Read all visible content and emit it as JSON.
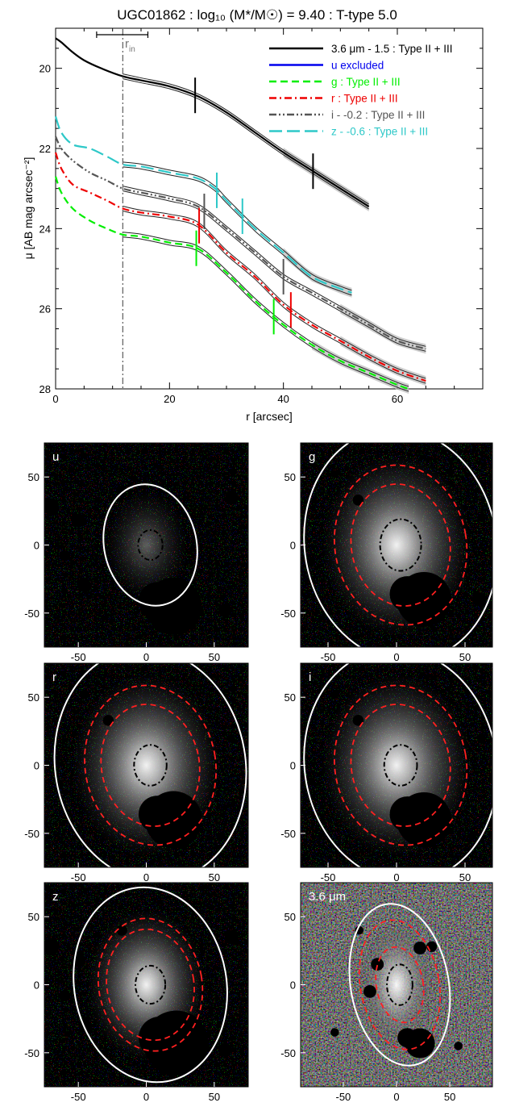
{
  "profile": {
    "title": "UGC01862 : log₁₀ (M*/M☉) = 9.40 : T-type 5.0",
    "xlabel": "r [arcsec]",
    "ylabel": "μ [AB mag arcsec⁻²]",
    "rin_label": "r",
    "rin_sub": "in",
    "x_ticks": [
      "0",
      "20",
      "40",
      "60"
    ],
    "y_ticks": [
      "20",
      "22",
      "24",
      "26",
      "28"
    ],
    "legend": [
      {
        "label": "3.6 μm - 1.5 : Type II + III",
        "color": "#000000",
        "label_color": "#000000"
      },
      {
        "label": "u excluded",
        "color": "#0000ee",
        "label_color": "#0000ee"
      },
      {
        "label": "g : Type II + III",
        "color": "#00ee00",
        "label_color": "#00ee00"
      },
      {
        "label": "r : Type II + III",
        "color": "#ee0000",
        "label_color": "#ee0000"
      },
      {
        "label": "i - -0.2 : Type II + III",
        "color": "#555555",
        "label_color": "#555555"
      },
      {
        "label": "z - -0.6 : Type II + III",
        "color": "#2ec8c8",
        "label_color": "#2ec8c8"
      }
    ]
  },
  "chart_data": {
    "type": "line",
    "title": "UGC01862 : log₁₀ (M*/M☉) = 9.40 : T-type 5.0",
    "xlabel": "r [arcsec]",
    "ylabel": "μ [AB mag arcsec⁻²]",
    "xlim": [
      0,
      75
    ],
    "ylim": [
      28,
      19
    ],
    "y_inverted": true,
    "r_in": 11.8,
    "r_in_errorbar": [
      7.2,
      16.2
    ],
    "series": [
      {
        "name": "3.6 μm - 1.5 : Type II + III",
        "color": "#000000",
        "style": "solid",
        "x": [
          0,
          1,
          3,
          5,
          8,
          11.8,
          15,
          20,
          25,
          30,
          35,
          40,
          45,
          50,
          55
        ],
        "y": [
          19.25,
          19.35,
          19.6,
          19.8,
          20.0,
          20.2,
          20.3,
          20.45,
          20.7,
          21.1,
          21.6,
          22.1,
          22.55,
          23.0,
          23.45
        ],
        "break_marks": [
          24.5,
          45.2
        ]
      },
      {
        "name": "z - -0.6 : Type II + III",
        "color": "#2ec8c8",
        "style": "longdash",
        "x": [
          0,
          1,
          3,
          6,
          9,
          11.8,
          15,
          20,
          25,
          28,
          30,
          35,
          40,
          45,
          50,
          52
        ],
        "y": [
          21.2,
          21.6,
          21.9,
          22.0,
          22.2,
          22.4,
          22.45,
          22.6,
          22.75,
          23.0,
          23.3,
          24.0,
          24.6,
          25.2,
          25.5,
          25.6
        ],
        "break_marks": [
          28.3,
          32.8
        ]
      },
      {
        "name": "i - -0.2 : Type II + III",
        "color": "#555555",
        "style": "dashdotdot",
        "x": [
          0,
          1,
          3,
          6,
          9,
          11.8,
          15,
          20,
          25,
          30,
          35,
          40,
          45,
          50,
          55,
          60,
          65
        ],
        "y": [
          21.7,
          22.0,
          22.3,
          22.6,
          22.8,
          23.0,
          23.1,
          23.25,
          23.45,
          24.0,
          24.6,
          25.2,
          25.6,
          26.0,
          26.4,
          26.8,
          27.0
        ],
        "break_marks": [
          26.1,
          40.0
        ]
      },
      {
        "name": "r : Type II + III",
        "color": "#ee0000",
        "style": "dashdot",
        "x": [
          0,
          1,
          3,
          6,
          9,
          11.8,
          15,
          20,
          25,
          30,
          35,
          40,
          45,
          50,
          55,
          60,
          65
        ],
        "y": [
          22.1,
          22.5,
          22.9,
          23.1,
          23.3,
          23.5,
          23.6,
          23.7,
          23.9,
          24.6,
          25.2,
          25.9,
          26.4,
          26.8,
          27.2,
          27.55,
          27.8
        ],
        "break_marks": [
          25.2,
          41.3
        ]
      },
      {
        "name": "g : Type II + III",
        "color": "#00ee00",
        "style": "dash",
        "x": [
          0,
          1,
          3,
          6,
          9,
          11.8,
          15,
          20,
          25,
          30,
          35,
          40,
          45,
          50,
          55,
          60,
          62
        ],
        "y": [
          22.7,
          23.1,
          23.5,
          23.8,
          24.0,
          24.15,
          24.2,
          24.35,
          24.5,
          25.1,
          25.8,
          26.4,
          26.9,
          27.3,
          27.6,
          27.9,
          28.0
        ],
        "break_marks": [
          24.7,
          38.3
        ]
      }
    ]
  },
  "panels": [
    {
      "label": "u",
      "x_ticks": [
        "-50",
        "0",
        "50"
      ],
      "y_ticks": [
        "50",
        "0",
        "-50"
      ],
      "white_ellipse": {
        "a": 34,
        "b": 45,
        "theta_deg": -12
      },
      "red_ellipses": [],
      "black_ellipse": {
        "a": 9,
        "b": 11
      }
    },
    {
      "label": "g",
      "x_ticks": [
        "-50",
        "0",
        "50"
      ],
      "y_ticks": [
        "50",
        "0",
        "-50"
      ],
      "white_ellipse": {
        "a": 70,
        "b": 86,
        "theta_deg": -10
      },
      "red_ellipses": [
        {
          "a": 36,
          "b": 45
        },
        {
          "a": 48,
          "b": 59
        }
      ],
      "black_ellipse": {
        "a": 15,
        "b": 19
      }
    },
    {
      "label": "r",
      "x_ticks": [
        "-50",
        "0",
        "50"
      ],
      "y_ticks": [
        "50",
        "0",
        "-50"
      ],
      "white_ellipse": {
        "a": 70,
        "b": 86,
        "theta_deg": -10
      },
      "red_ellipses": [
        {
          "a": 36,
          "b": 45
        },
        {
          "a": 48,
          "b": 59
        }
      ],
      "black_ellipse": {
        "a": 12,
        "b": 15
      }
    },
    {
      "label": "i",
      "x_ticks": [
        "-50",
        "0",
        "50"
      ],
      "y_ticks": [
        "50",
        "0",
        "-50"
      ],
      "white_ellipse": {
        "a": 70,
        "b": 86,
        "theta_deg": -10
      },
      "red_ellipses": [
        {
          "a": 36,
          "b": 45
        },
        {
          "a": 48,
          "b": 59
        }
      ],
      "black_ellipse": {
        "a": 12,
        "b": 15
      }
    },
    {
      "label": "z",
      "x_ticks": [
        "-50",
        "0",
        "50"
      ],
      "y_ticks": [
        "50",
        "0",
        "-50"
      ],
      "white_ellipse": {
        "a": 56,
        "b": 72,
        "theta_deg": -10
      },
      "red_ellipses": [
        {
          "a": 32,
          "b": 41
        },
        {
          "a": 38,
          "b": 49
        }
      ],
      "black_ellipse": {
        "a": 11,
        "b": 14
      }
    },
    {
      "label": "3.6 μm",
      "x_ticks": [
        "-50",
        "0",
        "50"
      ],
      "y_ticks": [
        "50",
        "0",
        "-50"
      ],
      "white_ellipse": {
        "a": 46,
        "b": 60,
        "theta_deg": -10
      },
      "red_ellipses": [
        {
          "a": 22,
          "b": 28
        },
        {
          "a": 37,
          "b": 48
        }
      ],
      "black_ellipse": {
        "a": 12,
        "b": 15
      }
    }
  ]
}
